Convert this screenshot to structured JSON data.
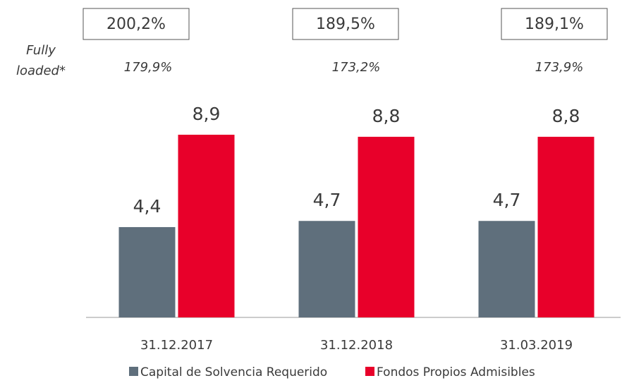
{
  "chart_data": {
    "type": "bar",
    "categories": [
      "31.12.2017",
      "31.12.2018",
      "31.03.2019"
    ],
    "series": [
      {
        "name": "Capital de Solvencia Requerido",
        "color": "#5f6f7c",
        "values": [
          4.4,
          4.7,
          4.7
        ],
        "value_labels": [
          "4,4",
          "4,7",
          "4,7"
        ]
      },
      {
        "name": "Fondos Propios Admisibles",
        "color": "#e8002a",
        "values": [
          8.9,
          8.8,
          8.8
        ],
        "value_labels": [
          "8,9",
          "8,8",
          "8,8"
        ]
      }
    ],
    "ratio_labels": [
      "200,2%",
      "189,5%",
      "189,1%"
    ],
    "fully_loaded_title": [
      "Fully",
      "loaded*"
    ],
    "fully_loaded_labels": [
      "179,9%",
      "173,2%",
      "173,9%"
    ],
    "ylim": [
      0,
      10
    ]
  }
}
